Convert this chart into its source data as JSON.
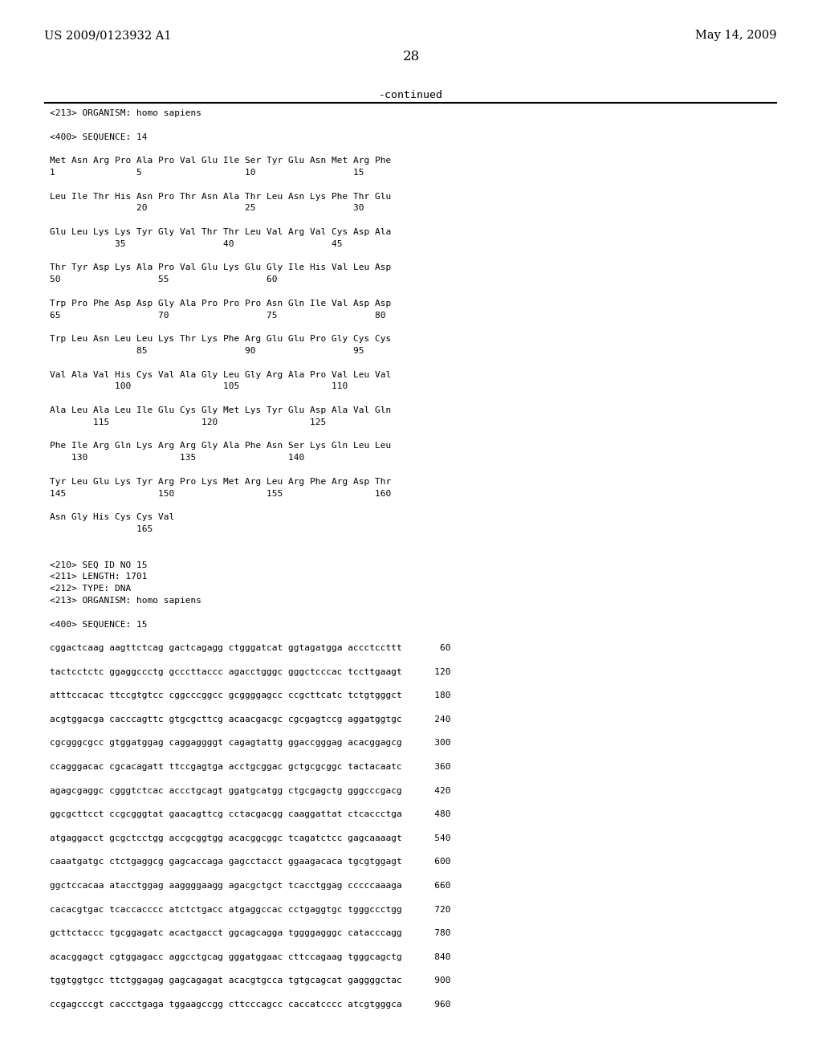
{
  "header_left": "US 2009/0123932 A1",
  "header_right": "May 14, 2009",
  "page_number": "28",
  "continued_text": "-continued",
  "background_color": "#ffffff",
  "text_color": "#000000",
  "content": [
    "<213> ORGANISM: homo sapiens",
    "",
    "<400> SEQUENCE: 14",
    "",
    "Met Asn Arg Pro Ala Pro Val Glu Ile Ser Tyr Glu Asn Met Arg Phe",
    "1               5                   10                  15",
    "",
    "Leu Ile Thr His Asn Pro Thr Asn Ala Thr Leu Asn Lys Phe Thr Glu",
    "                20                  25                  30",
    "",
    "Glu Leu Lys Lys Tyr Gly Val Thr Thr Leu Val Arg Val Cys Asp Ala",
    "            35                  40                  45",
    "",
    "Thr Tyr Asp Lys Ala Pro Val Glu Lys Glu Gly Ile His Val Leu Asp",
    "50                  55                  60",
    "",
    "Trp Pro Phe Asp Asp Gly Ala Pro Pro Pro Asn Gln Ile Val Asp Asp",
    "65                  70                  75                  80",
    "",
    "Trp Leu Asn Leu Leu Lys Thr Lys Phe Arg Glu Glu Pro Gly Cys Cys",
    "                85                  90                  95",
    "",
    "Val Ala Val His Cys Val Ala Gly Leu Gly Arg Ala Pro Val Leu Val",
    "            100                 105                 110",
    "",
    "Ala Leu Ala Leu Ile Glu Cys Gly Met Lys Tyr Glu Asp Ala Val Gln",
    "        115                 120                 125",
    "",
    "Phe Ile Arg Gln Lys Arg Arg Gly Ala Phe Asn Ser Lys Gln Leu Leu",
    "    130                 135                 140",
    "",
    "Tyr Leu Glu Lys Tyr Arg Pro Lys Met Arg Leu Arg Phe Arg Asp Thr",
    "145                 150                 155                 160",
    "",
    "Asn Gly His Cys Cys Val",
    "                165",
    "",
    "",
    "<210> SEQ ID NO 15",
    "<211> LENGTH: 1701",
    "<212> TYPE: DNA",
    "<213> ORGANISM: homo sapiens",
    "",
    "<400> SEQUENCE: 15",
    "",
    "cggactcaag aagttctcag gactcagagg ctgggatcat ggtagatgga accctccttt       60",
    "",
    "tactcctctc ggaggccctg gcccttaccc agacctgggc gggctcccac tccttgaagt      120",
    "",
    "atttccacac ttccgtgtcc cggcccggcc gcggggagcc ccgcttcatc tctgtgggct      180",
    "",
    "acgtggacga cacccagttc gtgcgcttcg acaacgacgc cgcgagtccg aggatggtgc      240",
    "",
    "cgcgggcgcc gtggatggag caggaggggt cagagtattg ggaccgggag acacggagcg      300",
    "",
    "ccagggacac cgcacagatt ttccgagtga acctgcggac gctgcgcggc tactacaatc      360",
    "",
    "agagcgaggc cgggtctcac accctgcagt ggatgcatgg ctgcgagctg gggcccgacg      420",
    "",
    "ggcgcttcct ccgcgggtat gaacagttcg cctacgacgg caaggattat ctcaccctga      480",
    "",
    "atgaggacct gcgctcctgg accgcggtgg acacggcggc tcagatctcc gagcaaaagt      540",
    "",
    "caaatgatgc ctctgaggcg gagcaccaga gagcctacct ggaagacaca tgcgtggagt      600",
    "",
    "ggctccacaa atacctggag aaggggaagg agacgctgct tcacctggag cccccaaaga      660",
    "",
    "cacacgtgac tcaccacccc atctctgacc atgaggccac cctgaggtgc tgggccctgg      720",
    "",
    "gcttctaccc tgcggagatc acactgacct ggcagcagga tggggagggc catacccagg      780",
    "",
    "acacggagct cgtggagacc aggcctgcag gggatggaac cttccagaag tgggcagctg      840",
    "",
    "tggtggtgcc ttctggagag gagcagagat acacgtgcca tgtgcagcat gaggggctac      900",
    "",
    "ccgagcccgt caccctgaga tggaagccgg cttcccagcc caccatcccc atcgtgggca      960"
  ]
}
